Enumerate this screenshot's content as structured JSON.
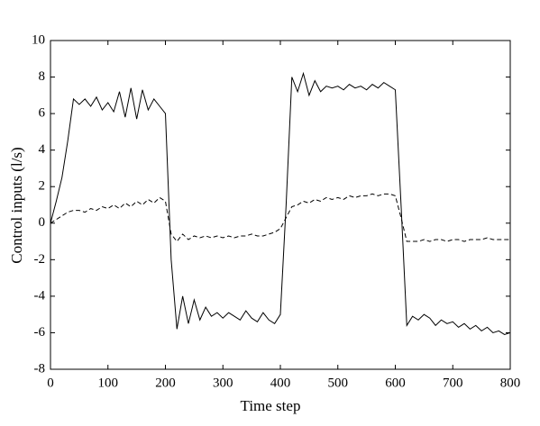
{
  "chart_data": {
    "type": "line",
    "xlabel": "Time step",
    "ylabel": "Control inputs (l/s)",
    "x": [
      0,
      10,
      20,
      30,
      40,
      50,
      60,
      70,
      80,
      90,
      100,
      110,
      120,
      130,
      140,
      150,
      160,
      170,
      180,
      190,
      200,
      210,
      220,
      230,
      240,
      250,
      260,
      270,
      280,
      290,
      300,
      310,
      320,
      330,
      340,
      350,
      360,
      370,
      380,
      390,
      400,
      410,
      420,
      430,
      440,
      450,
      460,
      470,
      480,
      490,
      500,
      510,
      520,
      530,
      540,
      550,
      560,
      570,
      580,
      590,
      600,
      610,
      620,
      630,
      640,
      650,
      660,
      670,
      680,
      690,
      700,
      710,
      720,
      730,
      740,
      750,
      760,
      770,
      780,
      790,
      800
    ],
    "series": [
      {
        "color": "#000000",
        "dashed": false,
        "values": [
          0,
          1.2,
          2.5,
          4.5,
          6.8,
          6.5,
          6.8,
          6.4,
          6.9,
          6.2,
          6.6,
          6.1,
          7.2,
          5.8,
          7.4,
          5.7,
          7.3,
          6.2,
          6.8,
          6.4,
          6.0,
          -2,
          -5.8,
          -4.0,
          -5.5,
          -4.2,
          -5.3,
          -4.6,
          -5.1,
          -4.9,
          -5.2,
          -4.9,
          -5.1,
          -5.3,
          -4.8,
          -5.2,
          -5.4,
          -4.9,
          -5.3,
          -5.5,
          -5.0,
          1,
          8.0,
          7.2,
          8.2,
          7.0,
          7.8,
          7.2,
          7.5,
          7.4,
          7.5,
          7.3,
          7.6,
          7.4,
          7.5,
          7.3,
          7.6,
          7.4,
          7.7,
          7.5,
          7.3,
          1,
          -5.6,
          -5.1,
          -5.3,
          -5.0,
          -5.2,
          -5.6,
          -5.3,
          -5.5,
          -5.4,
          -5.7,
          -5.5,
          -5.8,
          -5.6,
          -5.9,
          -5.7,
          -6.0,
          -5.9,
          -6.1,
          -6.0
        ]
      },
      {
        "color": "#000000",
        "dashed": true,
        "values": [
          0,
          0.2,
          0.4,
          0.6,
          0.7,
          0.7,
          0.6,
          0.8,
          0.7,
          0.9,
          0.8,
          1.0,
          0.8,
          1.1,
          0.9,
          1.2,
          1.0,
          1.3,
          1.1,
          1.4,
          1.2,
          -0.6,
          -1.0,
          -0.6,
          -0.9,
          -0.7,
          -0.8,
          -0.7,
          -0.8,
          -0.7,
          -0.8,
          -0.7,
          -0.8,
          -0.7,
          -0.7,
          -0.6,
          -0.7,
          -0.7,
          -0.6,
          -0.5,
          -0.3,
          0.3,
          0.9,
          1.0,
          1.2,
          1.1,
          1.3,
          1.2,
          1.4,
          1.3,
          1.4,
          1.3,
          1.5,
          1.4,
          1.5,
          1.5,
          1.6,
          1.5,
          1.6,
          1.6,
          1.5,
          0.3,
          -1.0,
          -1.0,
          -1.0,
          -0.9,
          -1.0,
          -0.9,
          -0.9,
          -1.0,
          -0.9,
          -0.9,
          -1.0,
          -0.9,
          -0.9,
          -0.9,
          -0.8,
          -0.9,
          -0.9,
          -0.9,
          -0.9
        ]
      }
    ],
    "xlim": [
      0,
      800
    ],
    "xticks": [
      0,
      100,
      200,
      300,
      400,
      500,
      600,
      700,
      800
    ],
    "ylim": [
      -8,
      10
    ],
    "yticks": [
      -8,
      -6,
      -4,
      -2,
      0,
      2,
      4,
      6,
      8,
      10
    ],
    "grid": false
  }
}
